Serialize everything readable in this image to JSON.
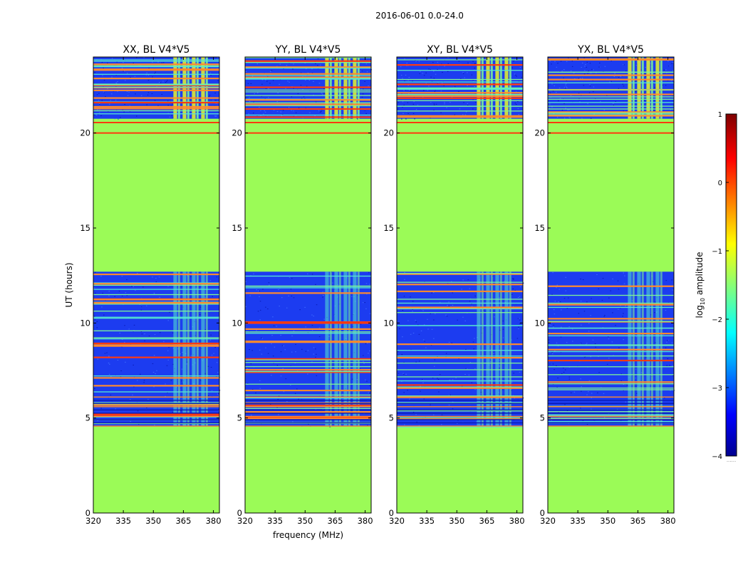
{
  "suptitle": "2016-06-01 0.0-24.0",
  "colors": {
    "background_green": "#9bfb57",
    "noise_blue": "#1c3cf0",
    "deep_blue": "#0a1ab4",
    "cyan": "#56e8d0",
    "green_rfi": "#7ff596",
    "yellow": "#e7f52a",
    "orange": "#ff8a2e",
    "red": "#ff3a10"
  },
  "chart_data": [
    {
      "type": "heatmap",
      "title": "XX, BL V4*V5",
      "xlabel": "",
      "ylabel": "UT (hours)",
      "xlim": [
        320,
        383
      ],
      "ylim": [
        0,
        24
      ],
      "xticks": [
        320,
        335,
        350,
        365,
        380
      ],
      "yticks": [
        0,
        5,
        10,
        15,
        20
      ],
      "flagged_ranges_hours": [
        [
          0,
          4.55
        ],
        [
          12.7,
          20.75
        ]
      ],
      "observed_ranges_hours": [
        [
          4.55,
          12.7
        ],
        [
          20.75,
          24
        ]
      ],
      "rfi_band_mhz": [
        360,
        378.5
      ]
    },
    {
      "type": "heatmap",
      "title": "YY, BL V4*V5",
      "xlabel": "frequency (MHz)",
      "ylabel": "",
      "xlim": [
        320,
        383
      ],
      "ylim": [
        0,
        24
      ],
      "xticks": [
        320,
        335,
        350,
        365,
        380
      ],
      "yticks": [
        0,
        5,
        10,
        15,
        20
      ],
      "flagged_ranges_hours": [
        [
          0,
          4.55
        ],
        [
          12.7,
          20.75
        ]
      ],
      "observed_ranges_hours": [
        [
          4.55,
          12.7
        ],
        [
          20.75,
          24
        ]
      ],
      "rfi_band_mhz": [
        360,
        378.5
      ]
    },
    {
      "type": "heatmap",
      "title": "XY, BL V4*V5",
      "xlabel": "",
      "ylabel": "",
      "xlim": [
        320,
        383
      ],
      "ylim": [
        0,
        24
      ],
      "xticks": [
        320,
        335,
        350,
        365,
        380
      ],
      "yticks": [
        0,
        5,
        10,
        15,
        20
      ],
      "flagged_ranges_hours": [
        [
          0,
          4.55
        ],
        [
          12.7,
          20.75
        ]
      ],
      "observed_ranges_hours": [
        [
          4.55,
          12.7
        ],
        [
          20.75,
          24
        ]
      ],
      "rfi_band_mhz": [
        360,
        378.5
      ]
    },
    {
      "type": "heatmap",
      "title": "YX, BL V4*V5",
      "xlabel": "",
      "ylabel": "",
      "xlim": [
        320,
        383
      ],
      "ylim": [
        0,
        24
      ],
      "xticks": [
        320,
        335,
        350,
        365,
        380
      ],
      "yticks": [
        0,
        5,
        10,
        15,
        20
      ],
      "flagged_ranges_hours": [
        [
          0,
          4.55
        ],
        [
          12.7,
          20.75
        ]
      ],
      "observed_ranges_hours": [
        [
          4.55,
          12.7
        ],
        [
          20.75,
          24
        ]
      ],
      "rfi_band_mhz": [
        360,
        378.5
      ]
    }
  ],
  "colorbar": {
    "label_prefix": "log",
    "label_sub": "10",
    "label_suffix": " amplitude",
    "range": [
      -4,
      1
    ],
    "ticks": [
      1,
      0,
      -1,
      -2,
      -3,
      -4
    ],
    "tick_labels": [
      "1",
      "0",
      "−1",
      "−2",
      "−3",
      "−4"
    ],
    "colormap": "jet"
  },
  "annotations": {
    "footer_dots": "......"
  }
}
